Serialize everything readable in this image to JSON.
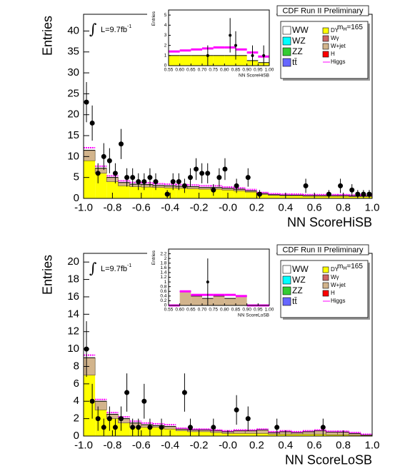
{
  "chart_data": [
    {
      "type": "histogram",
      "header": "CDF Run II Preliminary",
      "xlabel": "NN ScoreHiSB",
      "ylabel": "Entries",
      "lumi_symbol": "∫",
      "lumi": "L=9.7fb",
      "lumi_sup": "-1",
      "mass_label": {
        "text": "m",
        "sub": "H",
        "value": "=165"
      },
      "xlim": [
        -1,
        1
      ],
      "ylim": [
        0,
        44
      ],
      "xticks": [
        {
          "value": -1,
          "label": "-1.0"
        },
        -0.8,
        -0.6,
        -0.4,
        -0.2,
        {
          "value": 0,
          "label": "-0.0"
        },
        0.2,
        0.4,
        0.6,
        0.8,
        {
          "value": 1,
          "label": "1.0"
        }
      ],
      "yticks": [
        0,
        5,
        10,
        15,
        20,
        25,
        30,
        35,
        40
      ],
      "bins": [
        -1,
        -0.92,
        -0.84,
        -0.76,
        -0.68,
        -0.6,
        -0.52,
        -0.44,
        -0.36,
        -0.28,
        -0.2,
        -0.12,
        -0.04,
        0.04,
        0.12,
        0.2,
        0.28,
        0.36,
        0.44,
        0.52,
        0.6,
        0.68,
        0.76,
        0.84,
        0.92,
        1
      ],
      "series": [
        {
          "name": "DY",
          "color": "#ffff00",
          "values": [
            9,
            6,
            4,
            3,
            2.8,
            2.7,
            2.6,
            2.5,
            2.4,
            2.3,
            2.2,
            2.2,
            2,
            1.8,
            1.5,
            0.9,
            0.7,
            0.6,
            0.6,
            0.5,
            0.5,
            0.5,
            0.5,
            0.4,
            0.4
          ]
        },
        {
          "name": "W+jet",
          "color": "#d2b48c",
          "values": [
            2.5,
            1.2,
            1,
            0.8,
            0.6,
            0.6,
            0.5,
            0.5,
            0.5,
            0.5,
            0.4,
            0.4,
            0.4,
            0.4,
            0.3,
            0.3,
            0.2,
            0.2,
            0.2,
            0.2,
            0.2,
            0.2,
            0.2,
            0.2,
            0.2
          ]
        }
      ],
      "signal": {
        "name": "Higgs",
        "color": "#ff00ff",
        "values": [
          0.6,
          0.5,
          0.4,
          0.4,
          0.4,
          0.4,
          0.4,
          0.4,
          0.4,
          0.4,
          0.4,
          0.4,
          0.3,
          0.3,
          0.3,
          0.2,
          0.2,
          0.2,
          0.2,
          0.2,
          0.2,
          0.2,
          0.2,
          0.2,
          0.2
        ]
      },
      "legend_extra": [
        {
          "name": "WW",
          "color": "#ffffff"
        },
        {
          "name": "WZ",
          "color": "#00ffff"
        },
        {
          "name": "ZZ",
          "color": "#33cc33"
        },
        {
          "name": "tt̄",
          "color": "#6666ff"
        },
        {
          "name": "Wγ",
          "color": "#cc6666"
        },
        {
          "name": "H",
          "color": "#ff0000"
        }
      ],
      "data_points": {
        "x": [
          -0.98,
          -0.94,
          -0.9,
          -0.86,
          -0.82,
          -0.78,
          -0.74,
          -0.7,
          -0.66,
          -0.62,
          -0.58,
          -0.54,
          -0.5,
          -0.42,
          -0.38,
          -0.34,
          -0.3,
          -0.26,
          -0.22,
          -0.18,
          -0.14,
          -0.1,
          -0.06,
          -0.02,
          0.06,
          0.14,
          0.22,
          0.54,
          0.7,
          0.78,
          0.86,
          0.9,
          0.94,
          0.98
        ],
        "y": [
          23,
          18,
          6,
          10,
          9,
          6,
          13,
          5,
          5,
          4,
          4,
          5,
          4,
          1,
          4,
          4,
          3,
          5,
          7,
          6,
          6,
          2,
          5,
          7,
          3,
          5,
          1,
          3,
          1,
          3,
          2,
          1,
          1,
          1
        ],
        "errors": [
          4.8,
          4.2,
          2.4,
          3.2,
          3,
          2.4,
          3.6,
          2.2,
          2.2,
          2,
          2,
          2.2,
          2,
          1,
          2,
          2,
          1.7,
          2.2,
          2.6,
          2.4,
          2.4,
          1.4,
          2.2,
          2.6,
          1.7,
          2.2,
          1,
          1.7,
          1,
          1.7,
          1.4,
          1,
          1,
          1
        ]
      },
      "inset": {
        "xlabel": "NN ScoreHiSB",
        "ylabel": "Entries",
        "xlim": [
          0.55,
          1
        ],
        "ylim": [
          0,
          5.5
        ],
        "xticks": [
          0.55,
          {
            "value": 0.6,
            "label": "0.60"
          },
          0.65,
          {
            "value": 0.7,
            "label": "0.70"
          },
          0.75,
          {
            "value": 0.8,
            "label": "0.80"
          },
          0.85,
          {
            "value": 0.9,
            "label": "0.90"
          },
          0.95,
          {
            "value": 1,
            "label": "1.00"
          }
        ],
        "yticks": [
          0,
          1,
          2,
          3,
          4,
          5
        ],
        "bins": [
          0.55,
          0.6,
          0.65,
          0.7,
          0.75,
          0.8,
          0.85,
          0.9,
          0.95,
          1
        ],
        "series": [
          {
            "color": "#ffff00",
            "values": [
              1,
              1,
              1,
              1,
              1,
              1,
              1,
              0.5,
              0.3
            ]
          }
        ],
        "signal": {
          "color": "#ff00ff",
          "values": [
            0.4,
            0.5,
            0.6,
            0.7,
            0.8,
            0.8,
            0.6,
            0.8,
            0.6
          ]
        },
        "data_points": {
          "x": [
            0.725,
            0.825,
            0.85,
            0.925,
            0.975
          ],
          "y": [
            1,
            3,
            2,
            1,
            1
          ],
          "errors": [
            1,
            1.7,
            1.4,
            1,
            1
          ]
        }
      }
    },
    {
      "type": "histogram",
      "header": "CDF Run II Preliminary",
      "xlabel": "NN ScoreLoSB",
      "ylabel": "Entries",
      "lumi_symbol": "∫",
      "lumi": "L=9.7fb",
      "lumi_sup": "-1",
      "mass_label": {
        "text": "m",
        "sub": "H",
        "value": "=165"
      },
      "xlim": [
        -1,
        1
      ],
      "ylim": [
        0,
        21
      ],
      "xticks": [
        {
          "value": -1,
          "label": "-1.0"
        },
        -0.8,
        -0.6,
        -0.4,
        -0.2,
        {
          "value": 0,
          "label": "-0.0"
        },
        0.2,
        0.4,
        0.6,
        0.8,
        {
          "value": 1,
          "label": "1.0"
        }
      ],
      "yticks": [
        0,
        2,
        4,
        6,
        8,
        10,
        12,
        14,
        16,
        18,
        20
      ],
      "bins": [
        -1,
        -0.92,
        -0.84,
        -0.76,
        -0.68,
        -0.6,
        -0.52,
        -0.44,
        -0.36,
        -0.28,
        -0.2,
        -0.12,
        -0.04,
        0.04,
        0.12,
        0.2,
        0.28,
        0.36,
        0.44,
        0.52,
        0.6,
        0.68,
        0.76,
        0.84,
        0.92,
        1
      ],
      "series": [
        {
          "name": "DY",
          "color": "#ffff00",
          "values": [
            7,
            3,
            2,
            1.5,
            1,
            1,
            1,
            0.8,
            0.6,
            0.5,
            0.5,
            0.4,
            0.3,
            0.3,
            0.3,
            0.3,
            0.2,
            0.2,
            0.2,
            0.2,
            0.2,
            0.15,
            0.15,
            0.1,
            0.1
          ]
        },
        {
          "name": "W+jet",
          "color": "#d2b48c",
          "values": [
            2,
            1,
            0.5,
            0.5,
            0.5,
            0.3,
            0.2,
            0.3,
            0.2,
            0.2,
            0.2,
            0.2,
            0.2,
            0.3,
            0.3,
            0.4,
            0.2,
            0.3,
            0.2,
            0.3,
            0.4,
            0.3,
            0.3,
            0.2,
            0
          ]
        }
      ],
      "signal": {
        "name": "Higgs",
        "color": "#ff00ff",
        "values": [
          0.3,
          0.2,
          0.2,
          0.2,
          0.2,
          0.2,
          0.2,
          0.2,
          0.1,
          0.1,
          0.1,
          0.1,
          0.1,
          0.1,
          0.1,
          0.1,
          0.1,
          0.1,
          0.1,
          0.1,
          0.1,
          0.1,
          0.1,
          0.1,
          0.1
        ]
      },
      "legend_extra": [
        {
          "name": "WW",
          "color": "#ffffff"
        },
        {
          "name": "WZ",
          "color": "#00ffff"
        },
        {
          "name": "ZZ",
          "color": "#33cc33"
        },
        {
          "name": "tt̄",
          "color": "#6666ff"
        },
        {
          "name": "Wγ",
          "color": "#cc6666"
        },
        {
          "name": "H",
          "color": "#ff0000"
        }
      ],
      "data_points": {
        "x": [
          -0.98,
          -0.94,
          -0.9,
          -0.86,
          -0.82,
          -0.78,
          -0.74,
          -0.7,
          -0.66,
          -0.62,
          -0.58,
          -0.54,
          -0.46,
          -0.3,
          -0.26,
          -0.1,
          0.06,
          0.14,
          0.34,
          0.66
        ],
        "y": [
          10,
          4,
          2,
          1,
          2,
          1,
          2,
          5,
          1,
          1,
          4,
          1,
          1,
          5,
          1,
          1,
          3,
          2,
          1,
          1
        ],
        "errors": [
          3.2,
          2,
          1.4,
          1,
          1.4,
          1,
          1.4,
          2.2,
          1,
          1,
          2,
          1,
          1,
          2.2,
          1,
          1,
          1.7,
          1.4,
          1,
          1
        ]
      },
      "inset": {
        "xlabel": "NN ScoreLoSB",
        "ylabel": "Entries",
        "xlim": [
          0.55,
          1
        ],
        "ylim": [
          0,
          2.4
        ],
        "xticks": [
          0.55,
          {
            "value": 0.6,
            "label": "0.60"
          },
          0.65,
          {
            "value": 0.7,
            "label": "0.70"
          },
          0.75,
          {
            "value": 0.8,
            "label": "0.80"
          },
          0.85,
          {
            "value": 0.9,
            "label": "0.90"
          },
          0.95,
          {
            "value": 1,
            "label": "1.00"
          }
        ],
        "yticks": [
          0,
          0.2,
          0.4,
          0.6,
          0.8,
          1,
          1.2,
          1.4,
          1.6,
          1.8,
          2,
          2.2
        ],
        "bins": [
          0.55,
          0.6,
          0.65,
          0.7,
          0.75,
          0.8,
          0.85,
          0.9,
          0.95,
          1
        ],
        "series": [
          {
            "color": "#d2b48c",
            "values": [
              0,
              0.6,
              0.4,
              0.3,
              0.4,
              0.3,
              0.4,
              0,
              0
            ]
          }
        ],
        "signal": {
          "color": "#ff00ff",
          "values": [
            0,
            0,
            0.05,
            0.15,
            0.05,
            0.15,
            0,
            0,
            0
          ]
        },
        "data_points": {
          "x": [
            0.725
          ],
          "y": [
            1
          ],
          "errors": [
            1
          ]
        }
      }
    }
  ]
}
